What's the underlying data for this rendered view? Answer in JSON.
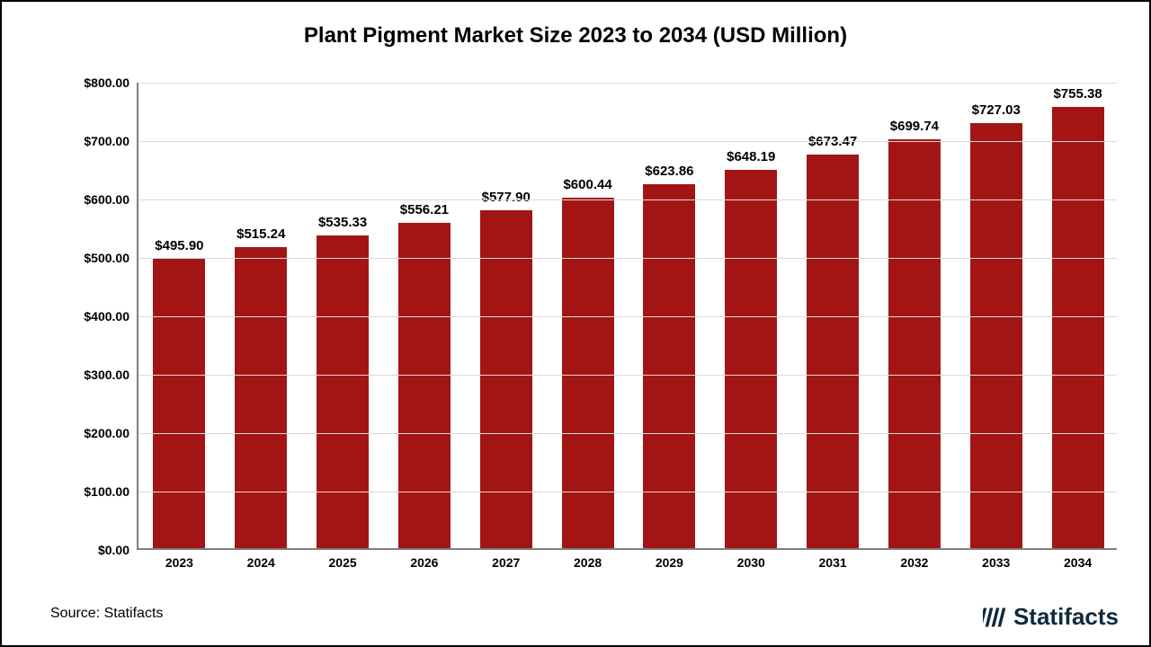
{
  "chart": {
    "type": "bar",
    "title": "Plant Pigment Market Size 2023 to 2034 (USD Million)",
    "title_fontsize": 24,
    "title_weight": 700,
    "background_color": "#ffffff",
    "border_color": "#000000",
    "axis_color": "#7f7f7f",
    "grid_color": "#d9d9d9",
    "ylim": [
      0,
      800
    ],
    "ytick_step": 100,
    "yticks": [
      "$0.00",
      "$100.00",
      "$200.00",
      "$300.00",
      "$400.00",
      "$500.00",
      "$600.00",
      "$700.00",
      "$800.00"
    ],
    "ylabel_fontsize": 14,
    "xlabel_fontsize": 14,
    "value_label_fontsize": 15,
    "bar_color": "#a31515",
    "bar_width_ratio": 0.64,
    "categories": [
      "2023",
      "2024",
      "2025",
      "2026",
      "2027",
      "2028",
      "2029",
      "2030",
      "2031",
      "2032",
      "2033",
      "2034"
    ],
    "values": [
      495.9,
      515.24,
      535.33,
      556.21,
      577.9,
      600.44,
      623.86,
      648.19,
      673.47,
      699.74,
      727.03,
      755.38
    ],
    "value_labels": [
      "$495.90",
      "$515.24",
      "$535.33",
      "$556.21",
      "$577.90",
      "$600.44",
      "$623.86",
      "$648.19",
      "$673.47",
      "$699.74",
      "$727.03",
      "$755.38"
    ]
  },
  "footer": {
    "source_text": "Source: Statifacts",
    "source_fontsize": 16,
    "brand_text": "Statifacts",
    "brand_fontsize": 26,
    "brand_color": "#0f2a3f"
  }
}
